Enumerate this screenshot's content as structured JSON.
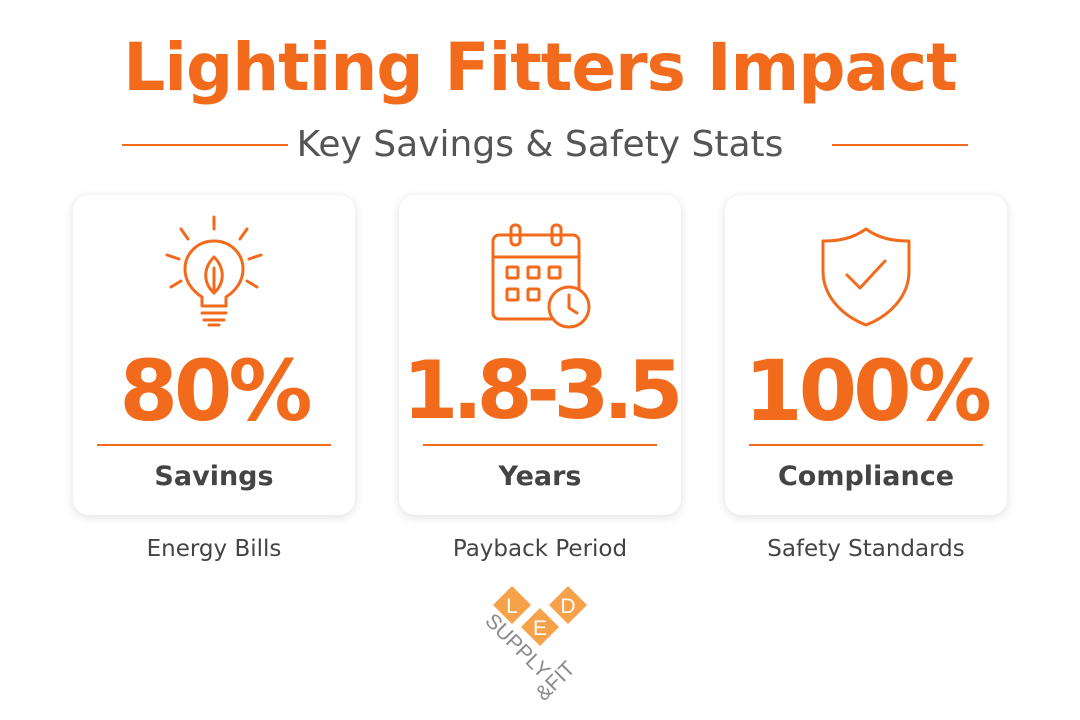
{
  "title": "Lighting Fitters Impact",
  "subtitle": "Key Savings & Safety Stats",
  "colors": {
    "accent": "#F26A1B",
    "text": "#444444",
    "logo_gray": "#8A8A8A"
  },
  "cards": [
    {
      "icon": "lightbulb-leaf-icon",
      "value": "80%",
      "label": "Savings",
      "caption": "Energy Bills"
    },
    {
      "icon": "calendar-clock-icon",
      "value": "1.8-3.5",
      "label": "Years",
      "caption": "Payback Period"
    },
    {
      "icon": "shield-check-icon",
      "value": "100%",
      "label": "Compliance",
      "caption": "Safety Standards"
    }
  ],
  "logo": {
    "letters": [
      "L",
      "E",
      "D"
    ],
    "text_left": "SUPPLY",
    "text_right": "&FIT"
  }
}
